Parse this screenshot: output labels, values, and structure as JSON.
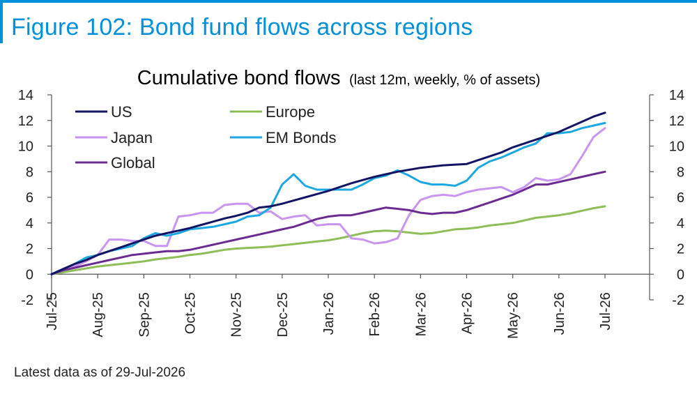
{
  "figure_title": "Figure 102: Bond fund flows across regions",
  "footnote": "Latest data as of 29-Jul-2026",
  "chart_data": {
    "type": "line",
    "title": "Cumulative bond flows",
    "subtitle": "(last 12m, weekly, % of assets)",
    "xlabel": "",
    "ylabel": "",
    "ylim": [
      -2,
      14
    ],
    "yticks": [
      -2,
      0,
      2,
      4,
      6,
      8,
      10,
      12,
      14
    ],
    "secondary_yticks": [
      -2,
      0,
      2,
      4,
      6,
      8,
      10,
      12,
      14
    ],
    "xtick_labels": [
      "Jul-25",
      "Aug-25",
      "Sep-25",
      "Oct-25",
      "Nov-25",
      "Dec-25",
      "Jan-26",
      "Feb-26",
      "Mar-26",
      "Apr-26",
      "May-26",
      "Jun-26",
      "Jul-26"
    ],
    "xlim": [
      0,
      12
    ],
    "grid": false,
    "legend": "top-left",
    "series": [
      {
        "name": "US",
        "color": "#141464",
        "x": [
          0,
          0.25,
          0.5,
          0.75,
          1,
          1.25,
          1.5,
          1.75,
          2,
          2.25,
          2.5,
          2.75,
          3,
          3.25,
          3.5,
          3.75,
          4,
          4.25,
          4.5,
          4.75,
          5,
          5.25,
          5.5,
          5.75,
          6,
          6.25,
          6.5,
          6.75,
          7,
          7.25,
          7.5,
          7.75,
          8,
          8.25,
          8.5,
          8.75,
          9,
          9.25,
          9.5,
          9.75,
          10,
          10.25,
          10.5,
          10.75,
          11,
          11.25,
          11.5,
          11.75,
          12
        ],
        "y": [
          0,
          0.4,
          0.8,
          1.1,
          1.5,
          1.8,
          2.1,
          2.4,
          2.7,
          3.0,
          3.2,
          3.4,
          3.6,
          3.85,
          4.1,
          4.35,
          4.55,
          4.8,
          5.2,
          5.3,
          5.5,
          5.75,
          6.0,
          6.25,
          6.5,
          6.8,
          7.1,
          7.35,
          7.6,
          7.8,
          8.0,
          8.15,
          8.3,
          8.4,
          8.5,
          8.55,
          8.6,
          8.9,
          9.2,
          9.5,
          9.9,
          10.2,
          10.5,
          10.8,
          11.1,
          11.5,
          11.9,
          12.3,
          12.6
        ]
      },
      {
        "name": "Europe",
        "color": "#8fbe56",
        "x": [
          0,
          0.25,
          0.5,
          0.75,
          1,
          1.25,
          1.5,
          1.75,
          2,
          2.25,
          2.5,
          2.75,
          3,
          3.25,
          3.5,
          3.75,
          4,
          4.25,
          4.5,
          4.75,
          5,
          5.25,
          5.5,
          5.75,
          6,
          6.25,
          6.5,
          6.75,
          7,
          7.25,
          7.5,
          7.75,
          8,
          8.25,
          8.5,
          8.75,
          9,
          9.25,
          9.5,
          9.75,
          10,
          10.25,
          10.5,
          10.75,
          11,
          11.25,
          11.5,
          11.75,
          12
        ],
        "y": [
          0,
          0.15,
          0.3,
          0.45,
          0.6,
          0.7,
          0.8,
          0.9,
          1.0,
          1.15,
          1.25,
          1.35,
          1.5,
          1.6,
          1.75,
          1.9,
          2.0,
          2.05,
          2.1,
          2.15,
          2.25,
          2.35,
          2.45,
          2.55,
          2.65,
          2.8,
          3.0,
          3.2,
          3.35,
          3.4,
          3.35,
          3.25,
          3.15,
          3.2,
          3.35,
          3.5,
          3.55,
          3.65,
          3.8,
          3.9,
          4.0,
          4.2,
          4.4,
          4.5,
          4.6,
          4.75,
          4.95,
          5.15,
          5.3
        ]
      },
      {
        "name": "Japan",
        "color": "#c896f0",
        "x": [
          0,
          0.25,
          0.5,
          0.75,
          1,
          1.25,
          1.5,
          1.75,
          2,
          2.25,
          2.5,
          2.75,
          3,
          3.25,
          3.5,
          3.75,
          4,
          4.25,
          4.5,
          4.75,
          5,
          5.25,
          5.5,
          5.75,
          6,
          6.25,
          6.5,
          6.75,
          7,
          7.25,
          7.5,
          7.75,
          8,
          8.25,
          8.5,
          8.75,
          9,
          9.25,
          9.5,
          9.75,
          10,
          10.25,
          10.5,
          10.75,
          11,
          11.25,
          11.5,
          11.75,
          12
        ],
        "y": [
          0,
          0.3,
          0.6,
          1.0,
          1.5,
          2.7,
          2.7,
          2.6,
          2.6,
          2.2,
          2.2,
          4.5,
          4.6,
          4.8,
          4.8,
          5.4,
          5.5,
          5.5,
          4.8,
          4.9,
          4.3,
          4.5,
          4.6,
          3.8,
          3.9,
          3.9,
          2.8,
          2.7,
          2.4,
          2.5,
          2.8,
          4.6,
          5.8,
          6.1,
          6.2,
          6.1,
          6.4,
          6.6,
          6.7,
          6.8,
          6.4,
          6.8,
          7.5,
          7.3,
          7.4,
          7.8,
          9.2,
          10.7,
          11.4
        ]
      },
      {
        "name": "EM Bonds",
        "color": "#1ea8e2",
        "x": [
          0,
          0.25,
          0.5,
          0.75,
          1,
          1.25,
          1.5,
          1.75,
          2,
          2.25,
          2.5,
          2.75,
          3,
          3.25,
          3.5,
          3.75,
          4,
          4.25,
          4.5,
          4.75,
          5,
          5.25,
          5.5,
          5.75,
          6,
          6.25,
          6.5,
          6.75,
          7,
          7.25,
          7.5,
          7.75,
          8,
          8.25,
          8.5,
          8.75,
          9,
          9.25,
          9.5,
          9.75,
          10,
          10.25,
          10.5,
          10.75,
          11,
          11.25,
          11.5,
          11.75,
          12
        ],
        "y": [
          0,
          0.4,
          0.8,
          1.3,
          1.5,
          1.8,
          2.0,
          2.2,
          2.8,
          3.2,
          3.0,
          3.2,
          3.5,
          3.6,
          3.7,
          3.9,
          4.1,
          4.5,
          4.6,
          5.2,
          7.0,
          7.8,
          6.9,
          6.6,
          6.6,
          6.6,
          6.6,
          7.0,
          7.5,
          7.7,
          8.1,
          7.7,
          7.2,
          7.0,
          7.0,
          6.9,
          7.3,
          8.3,
          8.8,
          9.1,
          9.5,
          9.9,
          10.2,
          11.0,
          11.0,
          11.1,
          11.4,
          11.6,
          11.8
        ]
      },
      {
        "name": "Global",
        "color": "#6a2c91",
        "x": [
          0,
          0.25,
          0.5,
          0.75,
          1,
          1.25,
          1.5,
          1.75,
          2,
          2.25,
          2.5,
          2.75,
          3,
          3.25,
          3.5,
          3.75,
          4,
          4.25,
          4.5,
          4.75,
          5,
          5.25,
          5.5,
          5.75,
          6,
          6.25,
          6.5,
          6.75,
          7,
          7.25,
          7.5,
          7.75,
          8,
          8.25,
          8.5,
          8.75,
          9,
          9.25,
          9.5,
          9.75,
          10,
          10.25,
          10.5,
          10.75,
          11,
          11.25,
          11.5,
          11.75,
          12
        ],
        "y": [
          0,
          0.3,
          0.5,
          0.7,
          0.9,
          1.1,
          1.3,
          1.5,
          1.6,
          1.7,
          1.8,
          1.8,
          1.9,
          2.1,
          2.3,
          2.5,
          2.7,
          2.9,
          3.1,
          3.3,
          3.5,
          3.7,
          4.0,
          4.3,
          4.5,
          4.6,
          4.6,
          4.8,
          5.0,
          5.2,
          5.1,
          5.0,
          4.8,
          4.7,
          4.8,
          4.8,
          5.0,
          5.3,
          5.6,
          5.9,
          6.2,
          6.6,
          7.0,
          7.0,
          7.2,
          7.4,
          7.6,
          7.8,
          8.0
        ]
      }
    ]
  }
}
